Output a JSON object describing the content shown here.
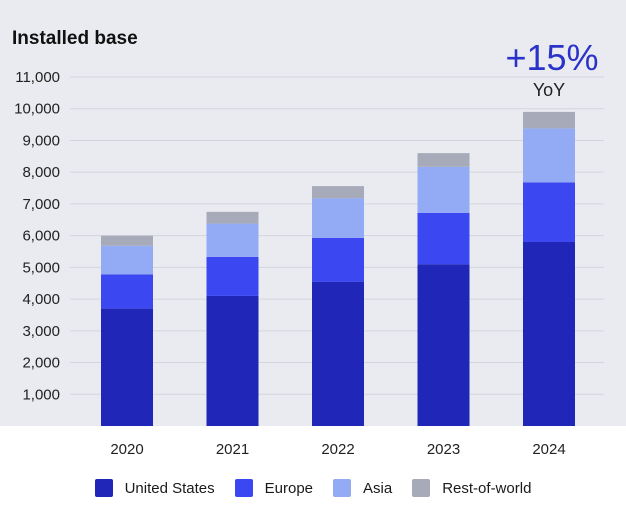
{
  "chart_data": {
    "type": "bar",
    "stacked": true,
    "title": "Installed base",
    "categories": [
      "2020",
      "2021",
      "2022",
      "2023",
      "2024"
    ],
    "series": [
      {
        "name": "United States",
        "color": "#1f26b8",
        "values": [
          3700,
          4100,
          4550,
          5100,
          5800
        ]
      },
      {
        "name": "Europe",
        "color": "#3b47f0",
        "values": [
          1080,
          1230,
          1380,
          1620,
          1880
        ]
      },
      {
        "name": "Asia",
        "color": "#93aaf5",
        "values": [
          900,
          1050,
          1250,
          1450,
          1700
        ]
      },
      {
        "name": "Rest-of-world",
        "color": "#a7abb9",
        "values": [
          320,
          370,
          380,
          430,
          520
        ]
      }
    ],
    "yticks": [
      "1,000",
      "2,000",
      "3,000",
      "4,000",
      "5,000",
      "6,000",
      "7,000",
      "8,000",
      "9,000",
      "10,000",
      "11,000"
    ],
    "ylim": [
      0,
      11000
    ],
    "grid": true,
    "annotation": {
      "value": "+15%",
      "label": "YoY",
      "category": "2024"
    },
    "legend_position": "bottom"
  }
}
